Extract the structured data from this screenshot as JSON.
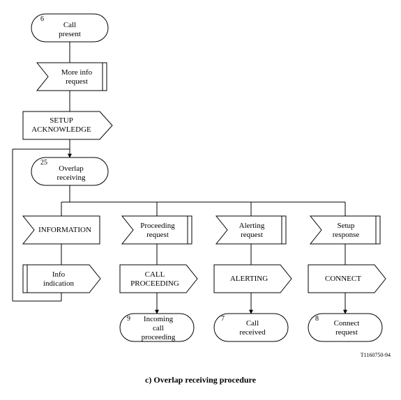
{
  "stroke": "#000000",
  "bg": "#ffffff",
  "caption": "c)  Overlap receiving procedure",
  "figref": "T1160750-94",
  "nodes": {
    "callPresent": {
      "label": "Call\npresent",
      "num": "6"
    },
    "moreInfoReq": {
      "label": "More info\nrequest"
    },
    "setupAck": {
      "label": "SETUP\nACKNOWLEDGE"
    },
    "overlapRecv": {
      "label": "Overlap\nreceiving",
      "num": "25"
    },
    "information": {
      "label": "INFORMATION"
    },
    "infoInd": {
      "label": "Info\nindication"
    },
    "procReq": {
      "label": "Proceeding\nrequest"
    },
    "callProc": {
      "label": "CALL\nPROCEEDING"
    },
    "incoming": {
      "label": "Incoming\ncall\nproceeding",
      "num": "9"
    },
    "alertReq": {
      "label": "Alerting\nrequest"
    },
    "alerting": {
      "label": "ALERTING"
    },
    "callRecv": {
      "label": "Call\nreceived",
      "num": "7"
    },
    "setupResp": {
      "label": "Setup\nresponse"
    },
    "connect": {
      "label": "CONNECT"
    },
    "connReq": {
      "label": "Connect\nrequest",
      "num": "8"
    }
  }
}
